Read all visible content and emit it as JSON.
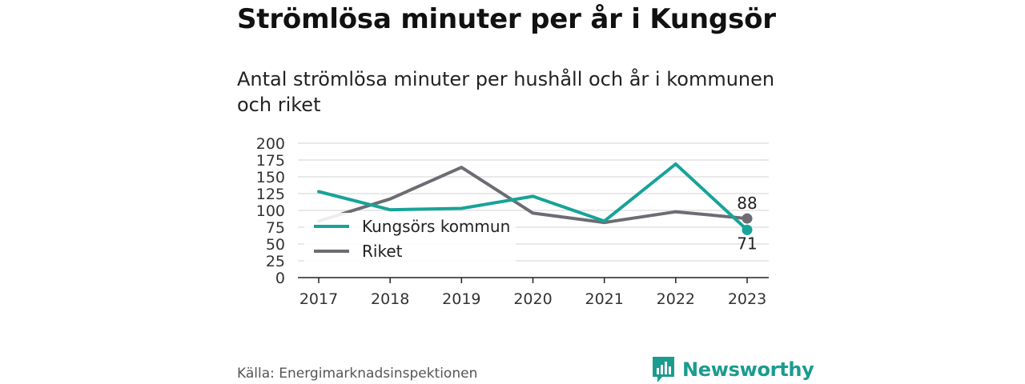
{
  "header": {
    "title": "Strömlösa minuter per år i Kungsör",
    "subtitle": "Antal strömlösa minuter per hushåll och år i kommunen och riket"
  },
  "footer": {
    "source": "Källa: Energimarknadsinspektionen",
    "brand": "Newsworthy"
  },
  "colors": {
    "kungsor": "#17a398",
    "riket": "#6d6c73",
    "brand": "#1a9c8f"
  },
  "chart_data": {
    "type": "line",
    "x": [
      "2017",
      "2018",
      "2019",
      "2020",
      "2021",
      "2022",
      "2023"
    ],
    "ylim": [
      0,
      200
    ],
    "yticks": [
      0,
      25,
      50,
      75,
      100,
      125,
      150,
      175,
      200
    ],
    "grid": true,
    "legend_position": "center-left",
    "series": [
      {
        "name": "Kungsörs kommun",
        "values": [
          128,
          101,
          103,
          121,
          84,
          169,
          71
        ]
      },
      {
        "name": "Riket",
        "values": [
          84,
          117,
          164,
          96,
          82,
          98,
          88
        ]
      }
    ],
    "end_labels": [
      "88",
      "71"
    ]
  }
}
